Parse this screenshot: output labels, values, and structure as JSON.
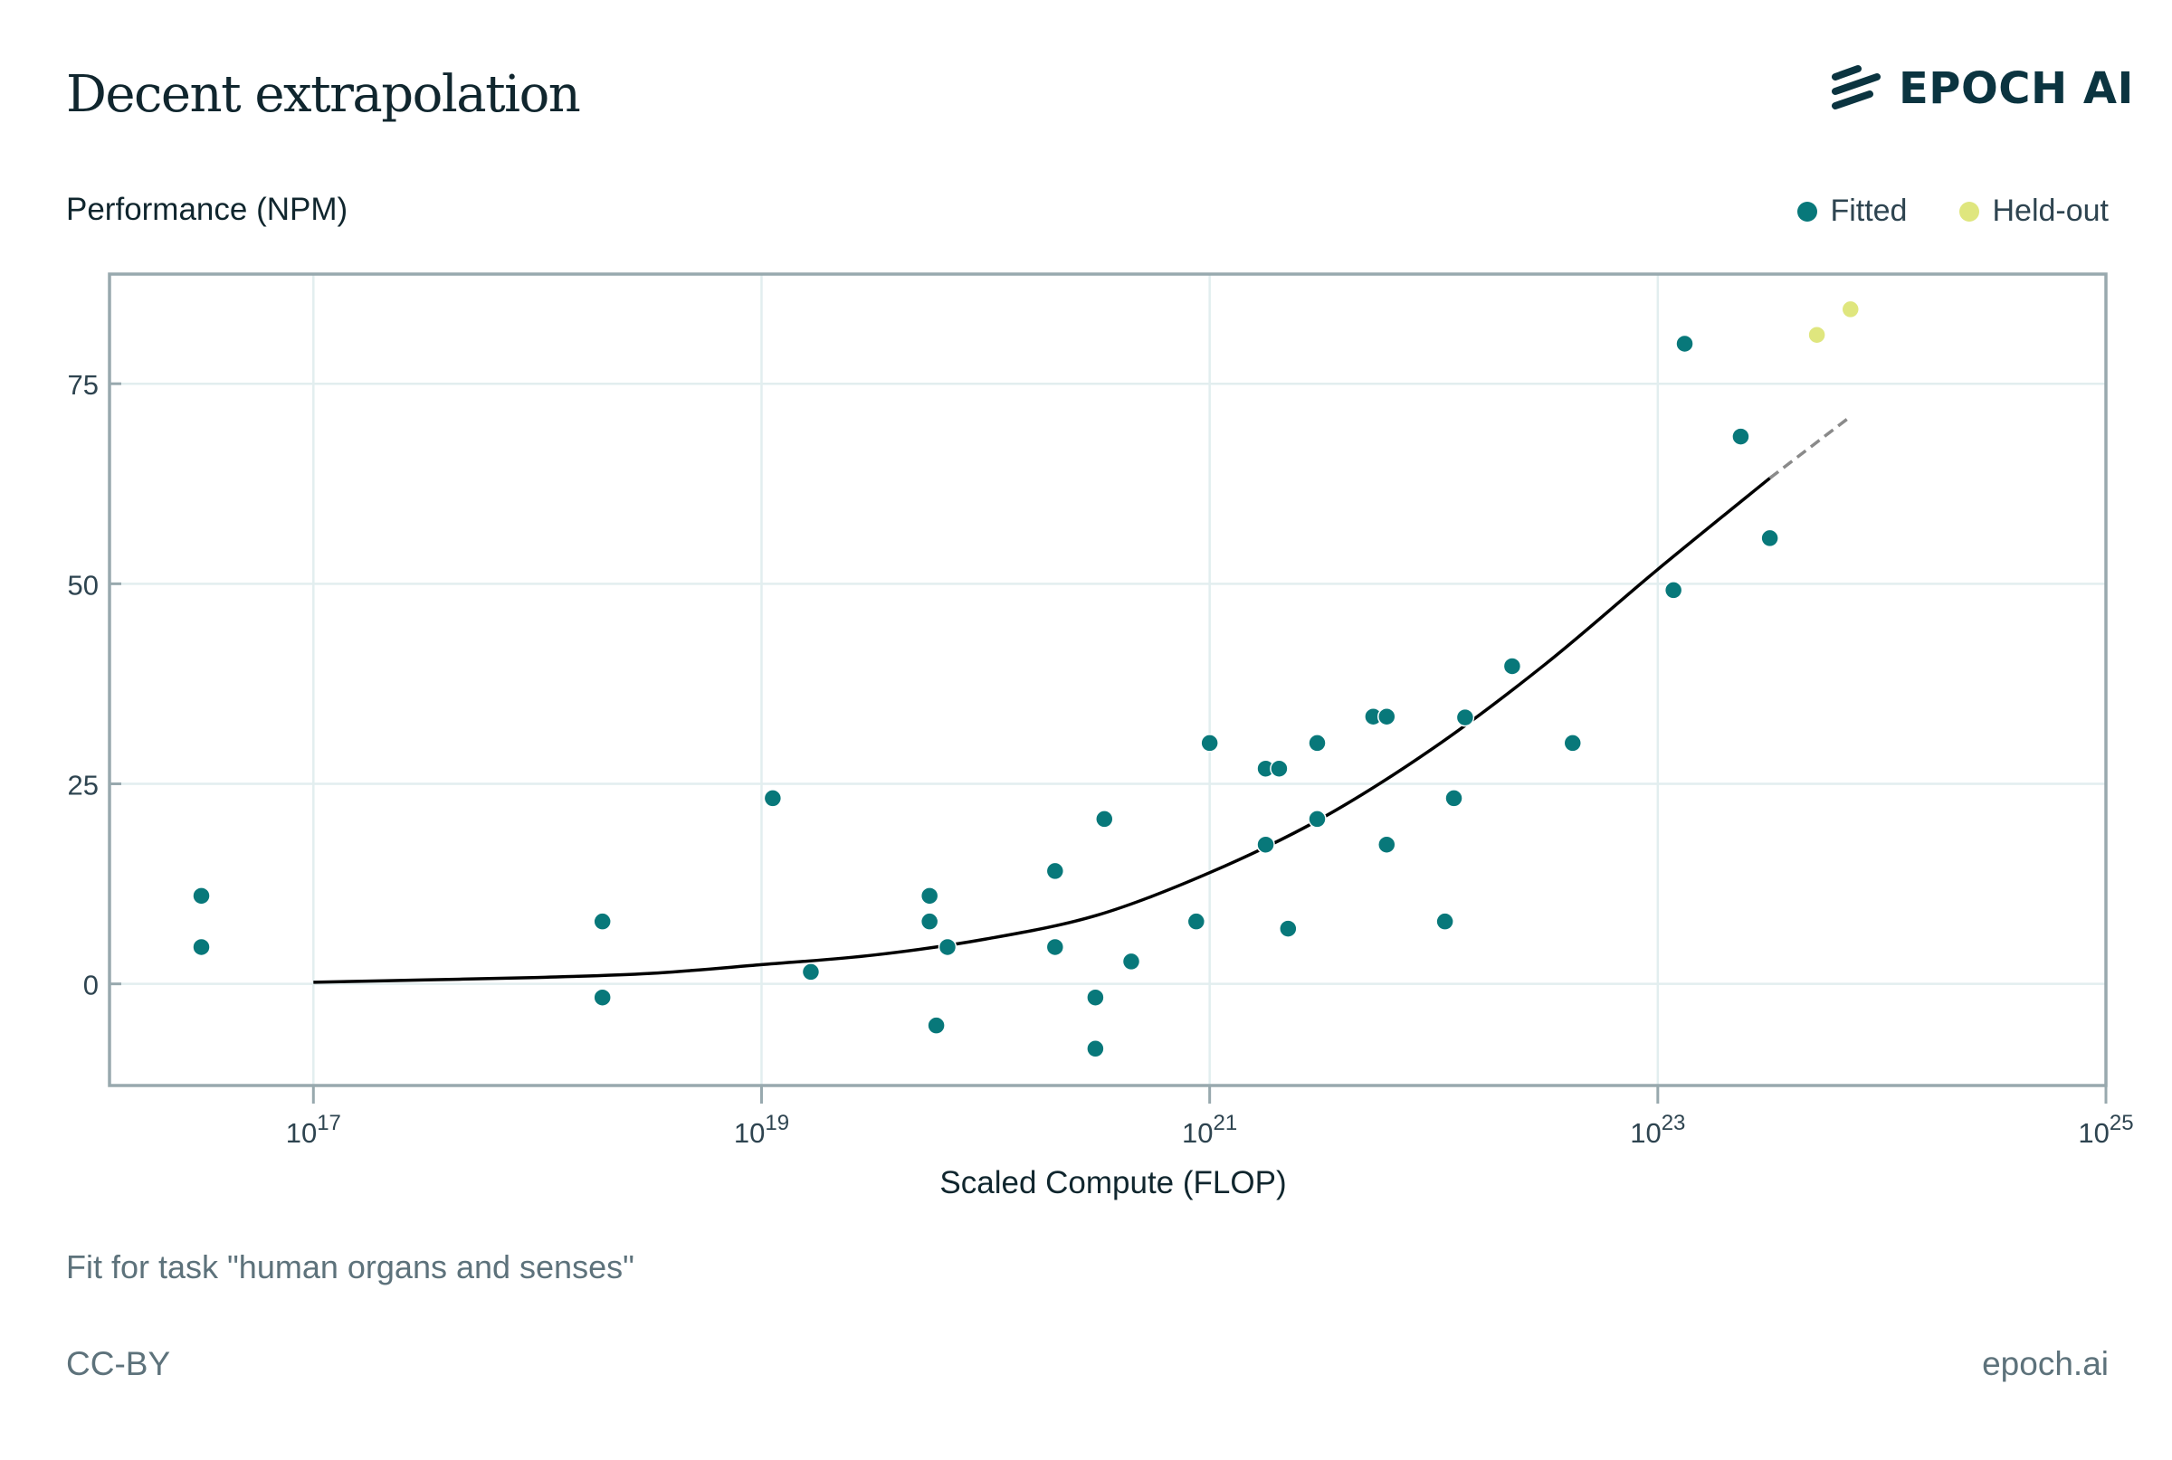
{
  "header": {
    "title": "Decent extrapolation",
    "brand": "EPOCH AI"
  },
  "legend": [
    {
      "label": "Fitted",
      "color": "#08787a"
    },
    {
      "label": "Held-out",
      "color": "#dfe67e"
    }
  ],
  "footer": {
    "subtitle": "Fit for task \"human organs and senses\"",
    "license": "CC-BY",
    "site": "epoch.ai"
  },
  "chart_data": {
    "type": "scatter",
    "title": "Decent extrapolation",
    "subtitle": "Fit for task \"human organs and senses\"",
    "xlabel": "Scaled Compute (FLOP)",
    "ylabel": "Performance (NPM)",
    "xscale": "log10",
    "xlim_log10": [
      16.09,
      25
    ],
    "ylim": [
      -12.7,
      88.7
    ],
    "grid": true,
    "legend_position": "top-right",
    "x_ticks": [
      {
        "exp": 17,
        "base": "10",
        "sup": "17"
      },
      {
        "exp": 19,
        "base": "10",
        "sup": "19"
      },
      {
        "exp": 21,
        "base": "10",
        "sup": "21"
      },
      {
        "exp": 23,
        "base": "10",
        "sup": "23"
      },
      {
        "exp": 25,
        "base": "10",
        "sup": "25"
      }
    ],
    "y_ticks": [
      0,
      25,
      50,
      75
    ],
    "series": [
      {
        "name": "Fitted",
        "color": "#08787a",
        "points_log10x_y": [
          [
            16.5,
            11.0
          ],
          [
            16.5,
            4.6
          ],
          [
            18.29,
            7.8
          ],
          [
            18.29,
            -1.7
          ],
          [
            19.05,
            23.2
          ],
          [
            19.22,
            1.5
          ],
          [
            19.75,
            11.0
          ],
          [
            19.75,
            7.8
          ],
          [
            19.83,
            4.6
          ],
          [
            19.78,
            -5.2
          ],
          [
            20.31,
            14.1
          ],
          [
            20.31,
            4.6
          ],
          [
            20.49,
            -1.7
          ],
          [
            20.49,
            -8.1
          ],
          [
            20.53,
            20.6
          ],
          [
            20.65,
            2.8
          ],
          [
            20.94,
            7.8
          ],
          [
            21.0,
            30.1
          ],
          [
            21.25,
            26.9
          ],
          [
            21.31,
            26.9
          ],
          [
            21.25,
            17.4
          ],
          [
            21.35,
            6.9
          ],
          [
            21.48,
            30.1
          ],
          [
            21.48,
            20.6
          ],
          [
            21.73,
            33.4
          ],
          [
            21.79,
            33.4
          ],
          [
            21.79,
            17.4
          ],
          [
            22.05,
            7.8
          ],
          [
            22.09,
            23.2
          ],
          [
            22.14,
            33.3
          ],
          [
            22.35,
            39.7
          ],
          [
            22.62,
            30.1
          ],
          [
            23.07,
            49.2
          ],
          [
            23.12,
            80.0
          ],
          [
            23.37,
            68.4
          ],
          [
            23.5,
            55.7
          ]
        ]
      },
      {
        "name": "Held-out",
        "color": "#dfe67e",
        "points_log10x_y": [
          [
            23.71,
            81.1
          ],
          [
            23.86,
            84.3
          ]
        ]
      }
    ],
    "fit_curve": {
      "name": "Sigmoid fit",
      "color": "#000000",
      "solid_log10x_y": [
        [
          17.0,
          0.2
        ],
        [
          17.5,
          0.5
        ],
        [
          18.0,
          0.8
        ],
        [
          18.5,
          1.3
        ],
        [
          19.0,
          2.4
        ],
        [
          19.5,
          3.6
        ],
        [
          20.0,
          5.6
        ],
        [
          20.5,
          8.6
        ],
        [
          21.0,
          13.9
        ],
        [
          21.5,
          20.7
        ],
        [
          22.0,
          29.5
        ],
        [
          22.5,
          40.0
        ],
        [
          23.0,
          51.8
        ],
        [
          23.5,
          63.2
        ]
      ],
      "extrapolated_dashed_log10x_y": [
        [
          23.5,
          63.2
        ],
        [
          23.86,
          70.9
        ]
      ],
      "extrapolated_color": "#8a8a8a"
    }
  }
}
